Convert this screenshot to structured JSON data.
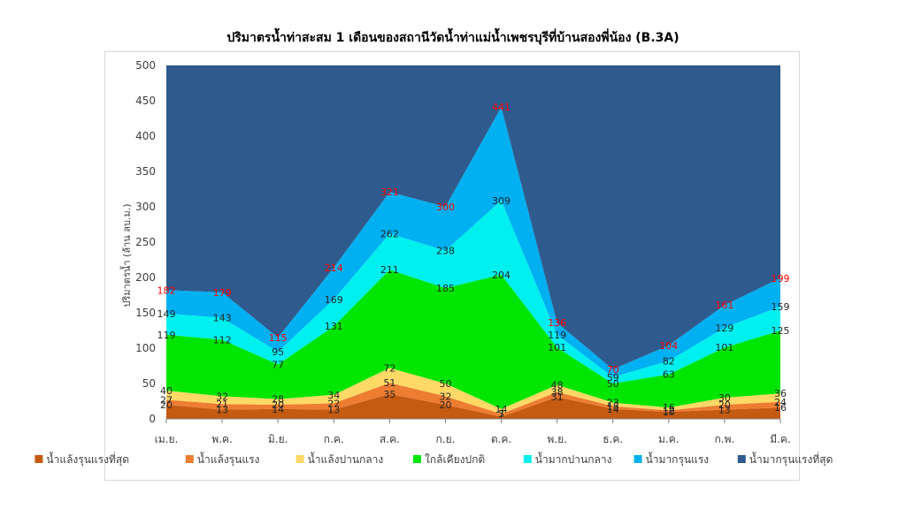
{
  "chart_data": {
    "type": "area",
    "title": "ปริมาตรน้ำท่าสะสม 1 เดือนของสถานีวัดน้ำท่าแม่น้ำเพชรบุรีที่บ้านสองพี่น้อง (B.3A)",
    "ylabel": "ปริมาตรน้ำ (ล้าน ลบ.ม.)",
    "xlabel": "",
    "ylim": [
      0,
      500
    ],
    "yticks": [
      "0",
      "50",
      "100",
      "150",
      "200",
      "250",
      "300",
      "350",
      "400",
      "450",
      "500"
    ],
    "categories": [
      "เม.ย.",
      "พ.ค.",
      "มิ.ย.",
      "ก.ค.",
      "ส.ค.",
      "ก.ย.",
      "ต.ค.",
      "พ.ย.",
      "ธ.ค.",
      "ม.ค.",
      "ก.พ.",
      "มี.ค."
    ],
    "legend_position": "bottom",
    "grid": false,
    "series": [
      {
        "name": "น้ำแล้งรุนแรงที่สุด",
        "color": "#c55a11",
        "values": [
          20,
          13,
          14,
          13,
          35,
          20,
          3,
          31,
          14,
          10,
          13,
          16
        ]
      },
      {
        "name": "น้ำแล้งรุนแรง",
        "color": "#ed7d31",
        "values": [
          27,
          21,
          20,
          22,
          51,
          32,
          7,
          38,
          18,
          12,
          20,
          24
        ]
      },
      {
        "name": "น้ำแล้งปานกลาง",
        "color": "#ffd966",
        "values": [
          40,
          32,
          28,
          34,
          72,
          50,
          14,
          48,
          23,
          16,
          30,
          36
        ]
      },
      {
        "name": "ใกล้เคียงปกติ",
        "color": "#00e600",
        "values": [
          119,
          112,
          77,
          131,
          211,
          185,
          204,
          101,
          50,
          63,
          101,
          125
        ]
      },
      {
        "name": "น้ำมากปานกลาง",
        "color": "#00f0f0",
        "values": [
          149,
          143,
          95,
          169,
          262,
          238,
          309,
          119,
          59,
          82,
          129,
          159
        ]
      },
      {
        "name": "น้ำมากรุนแรง",
        "color": "#00b0f0",
        "values": [
          182,
          179,
          115,
          214,
          321,
          300,
          441,
          136,
          70,
          104,
          161,
          199
        ]
      },
      {
        "name": "น้ำมากรุนแรงที่สุด",
        "color": "#2e5a8e",
        "values": [
          500,
          500,
          500,
          500,
          500,
          500,
          500,
          500,
          500,
          500,
          500,
          500
        ]
      }
    ],
    "value_labels": [
      [
        "20",
        "13",
        "14",
        "13",
        "35",
        "20",
        "3",
        "31",
        "14",
        "10",
        "13",
        "16"
      ],
      [
        "27",
        "21",
        "20",
        "22",
        "51",
        "32",
        "7",
        "38",
        "18",
        "12",
        "20",
        "24"
      ],
      [
        "40",
        "32",
        "28",
        "34",
        "72",
        "50",
        "14",
        "48",
        "23",
        "16",
        "30",
        "36"
      ],
      [
        "119",
        "112",
        "77",
        "131",
        "211",
        "185",
        "204",
        "101",
        "50",
        "63",
        "101",
        "125"
      ],
      [
        "149",
        "143",
        "95",
        "169",
        "262",
        "238",
        "309",
        "119",
        "59",
        "82",
        "129",
        "159"
      ],
      [
        "182",
        "179",
        "115",
        "214",
        "321",
        "300",
        "441",
        "136",
        "70",
        "104",
        "161",
        "199"
      ]
    ],
    "label_colors": {
      "default": "#262626",
      "top": "#ff0000"
    }
  }
}
